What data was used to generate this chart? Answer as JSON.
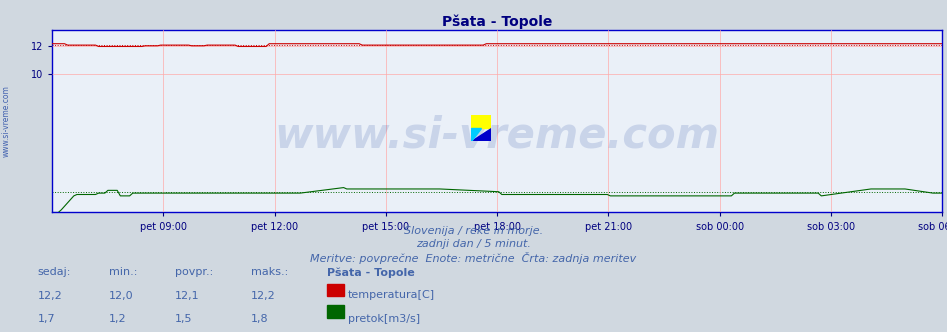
{
  "title": "Pšata - Topole",
  "bg_color": "#d0d8e0",
  "plot_bg_color": "#eaf0f8",
  "title_color": "#000080",
  "title_fontsize": 10,
  "grid_color": "#ffaaaa",
  "axis_color": "#0000cc",
  "tick_color": "#000080",
  "tick_fontsize": 7,
  "xlabel_ticks": [
    "pet 09:00",
    "pet 12:00",
    "pet 15:00",
    "pet 18:00",
    "pet 21:00",
    "sob 00:00",
    "sob 03:00",
    "sob 06:00"
  ],
  "ylim_min": 0,
  "ylim_max": 13.2,
  "yticks": [
    10,
    12
  ],
  "temp_color": "#cc0000",
  "flow_color": "#006600",
  "n_points": 288,
  "footer_line1": "Slovenija / reke in morje.",
  "footer_line2": "zadnji dan / 5 minut.",
  "footer_line3": "Meritve: povprečne  Enote: metrične  Črta: zadnja meritev",
  "footer_color": "#4466aa",
  "footer_fontsize": 8,
  "label_sedaj": "sedaj:",
  "label_min": "min.:",
  "label_povpr": "povpr.:",
  "label_maks": "maks.:",
  "station_label": "Pšata - Topole",
  "row1_sedaj": "12,2",
  "row1_min": "12,0",
  "row1_povpr": "12,1",
  "row1_maks": "12,2",
  "row1_legend": "temperatura[C]",
  "row2_sedaj": "1,7",
  "row2_min": "1,2",
  "row2_povpr": "1,5",
  "row2_maks": "1,8",
  "row2_legend": "pretok[m3/s]",
  "watermark_text": "www.si-vreme.com",
  "side_text": "www.si-vreme.com",
  "watermark_color": "#3355aa",
  "watermark_alpha": 0.18,
  "watermark_fontsize": 30
}
